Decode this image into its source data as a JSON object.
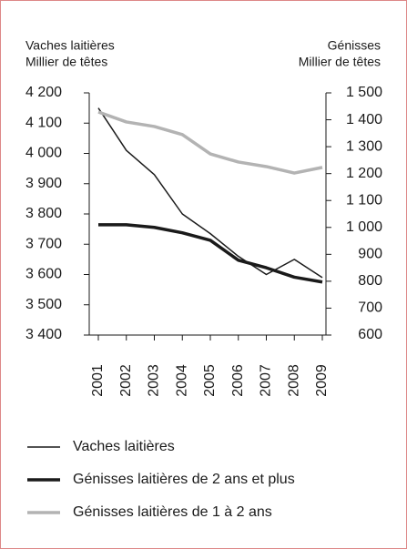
{
  "chart_data": {
    "type": "line",
    "ylabel": [
      "Vaches laitières",
      "Millier de têtes"
    ],
    "y2label": [
      "Génisses",
      "Millier de têtes"
    ],
    "x": [
      2001,
      2002,
      2003,
      2004,
      2005,
      2006,
      2007,
      2008,
      2009
    ],
    "xlim": [
      2001,
      2009
    ],
    "xticks": [
      2001,
      2002,
      2003,
      2004,
      2005,
      2006,
      2007,
      2008,
      2009
    ],
    "ylim": [
      3400,
      4200
    ],
    "yticks": [
      {
        "value": 3400,
        "label": "3 400"
      },
      {
        "value": 3500,
        "label": "3 500"
      },
      {
        "value": 3600,
        "label": "3 600"
      },
      {
        "value": 3700,
        "label": "3 700"
      },
      {
        "value": 3800,
        "label": "3 800"
      },
      {
        "value": 3900,
        "label": "3 900"
      },
      {
        "value": 4000,
        "label": "4 000"
      },
      {
        "value": 4100,
        "label": "4 100"
      },
      {
        "value": 4200,
        "label": "4 200"
      }
    ],
    "y2lim": [
      600,
      1500
    ],
    "y2ticks": [
      600,
      700,
      800,
      900,
      {
        "value": 1000,
        "label": "1 000"
      },
      {
        "value": 1100,
        "label": "1 100"
      },
      {
        "value": 1200,
        "label": "1 200"
      },
      {
        "value": 1300,
        "label": "1 300"
      },
      {
        "value": 1400,
        "label": "1 400"
      },
      {
        "value": 1500,
        "label": "1 500"
      }
    ],
    "series": [
      {
        "name": "Vaches laitières",
        "color": "#1a1a1a",
        "line_width": 1.5,
        "axis": "y",
        "values": [
          4150,
          4010,
          3930,
          3800,
          3735,
          3660,
          3600,
          3650,
          3590
        ]
      },
      {
        "name": "Génisses laitières de 2 ans et plus",
        "color": "#1a1a1a",
        "line_width": 3.5,
        "axis": "y2",
        "values": [
          1010,
          1010,
          1000,
          980,
          952,
          878,
          850,
          815,
          797
        ]
      },
      {
        "name": "Génisses laitières de 1 à 2 ans",
        "color": "#b3b3b3",
        "line_width": 3.5,
        "axis": "y2",
        "values": [
          1429,
          1392,
          1375,
          1345,
          1273,
          1243,
          1226,
          1202,
          1223
        ]
      }
    ]
  }
}
